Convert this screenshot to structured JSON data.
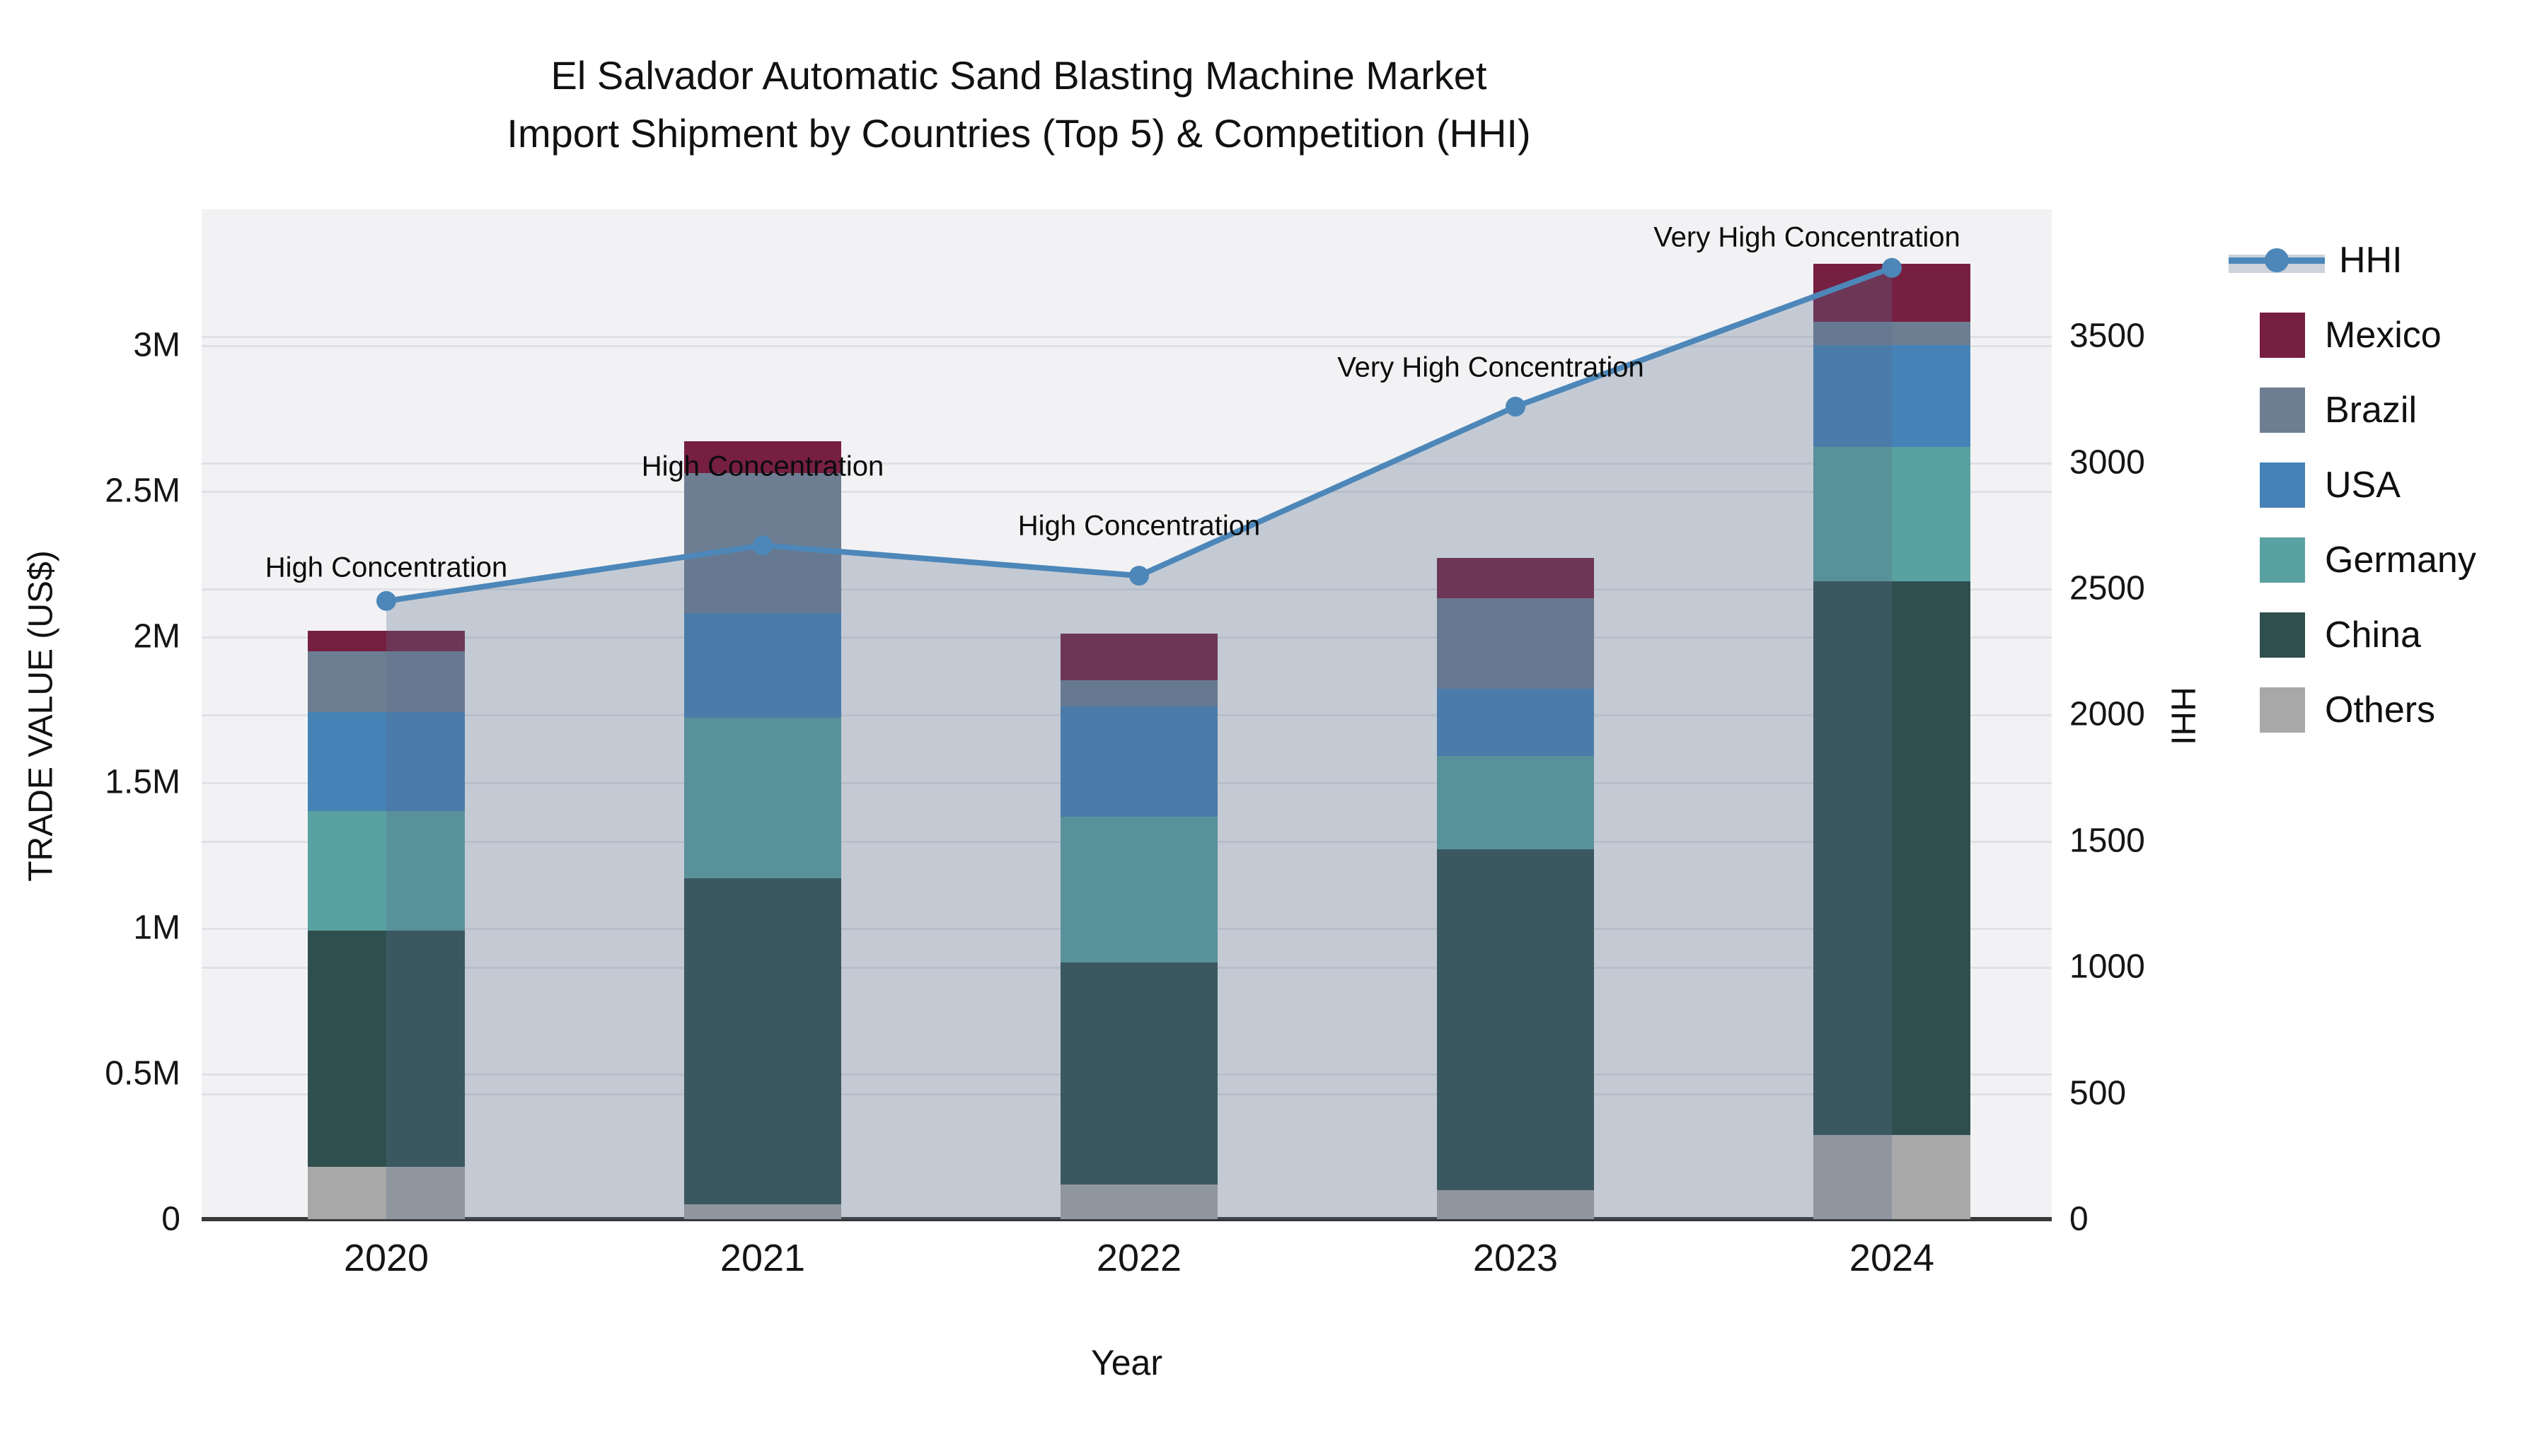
{
  "title": {
    "line1": "El Salvador Automatic Sand Blasting Machine Market",
    "line2": "Import Shipment by Countries (Top 5) & Competition (HHI)"
  },
  "axes": {
    "y_left": {
      "title": "TRADE VALUE (US$)",
      "tick_labels": [
        "0",
        "0.5M",
        "1M",
        "1.5M",
        "2M",
        "2.5M",
        "3M"
      ],
      "tick_values": [
        0,
        500000,
        1000000,
        1500000,
        2000000,
        2500000,
        3000000
      ],
      "range": [
        0,
        3466000
      ]
    },
    "y_right": {
      "title": "HHI",
      "tick_labels": [
        "0",
        "500",
        "1000",
        "1500",
        "2000",
        "2500",
        "3000",
        "3500"
      ],
      "tick_values": [
        0,
        500,
        1000,
        1500,
        2000,
        2500,
        3000,
        3500
      ],
      "range": [
        0,
        4002
      ]
    },
    "x": {
      "title": "Year",
      "categories": [
        "2020",
        "2021",
        "2022",
        "2023",
        "2024"
      ]
    }
  },
  "legend": {
    "hhi_label": "HHI"
  },
  "annotations": [
    {
      "year": "2020",
      "text": "High Concentration"
    },
    {
      "year": "2021",
      "text": "High Concentration"
    },
    {
      "year": "2022",
      "text": "High Concentration"
    },
    {
      "year": "2023",
      "text": "Very High Concentration"
    },
    {
      "year": "2024",
      "text": "Very High Concentration"
    }
  ],
  "chart_data": {
    "type": "bar",
    "subtype": "stacked-bars-with-hhi-line",
    "title": "El Salvador Automatic Sand Blasting Machine Market — Import Shipment by Countries (Top 5) & Competition (HHI)",
    "categories": [
      "2020",
      "2021",
      "2022",
      "2023",
      "2024"
    ],
    "xlabel": "Year",
    "ylabel_left": "TRADE VALUE (US$)",
    "ylabel_right": "HHI",
    "ylim_left": [
      0,
      3466000
    ],
    "ylim_right": [
      0,
      4002
    ],
    "grid": true,
    "legend_position": "right",
    "series": [
      {
        "name": "Mexico",
        "color": "#761f41",
        "values": [
          70000,
          110000,
          160000,
          140000,
          200000
        ]
      },
      {
        "name": "Brazil",
        "color": "#6d7e92",
        "values": [
          210000,
          480000,
          90000,
          310000,
          80000
        ]
      },
      {
        "name": "USA",
        "color": "#4583b6",
        "values": [
          340000,
          360000,
          380000,
          230000,
          350000
        ]
      },
      {
        "name": "Germany",
        "color": "#5aa1a1",
        "values": [
          410000,
          550000,
          500000,
          320000,
          460000
        ]
      },
      {
        "name": "China",
        "color": "#2e4f4e",
        "values": [
          810000,
          1120000,
          760000,
          1170000,
          1900000
        ]
      },
      {
        "name": "Others",
        "color": "#a8a8a8",
        "values": [
          180000,
          50000,
          120000,
          100000,
          290000
        ]
      }
    ],
    "bar_totals": [
      2020000,
      2670000,
      2010000,
      2270000,
      3280000
    ],
    "line_series": {
      "name": "HHI",
      "color": "#4d87b9",
      "area_fill": "rgba(90,110,140,0.30)",
      "values": [
        2450,
        2670,
        2550,
        3220,
        3770
      ]
    }
  },
  "colors": {
    "plot_background": "#f2f2f4",
    "gridline": "#e0e1e6",
    "axis_line": "#37383a",
    "text": "#111111"
  }
}
